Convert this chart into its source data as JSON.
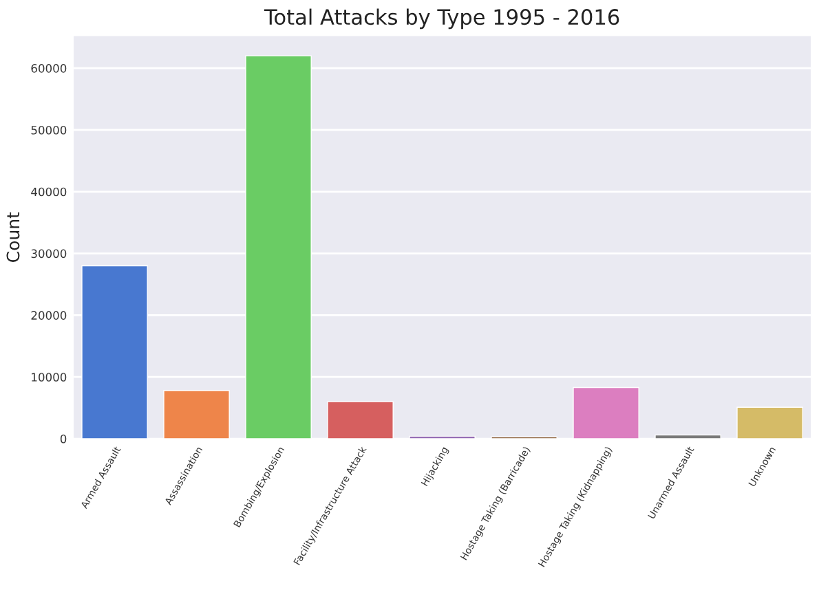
{
  "chart_data": {
    "type": "bar",
    "title": "Total Attacks by Type 1995 - 2016",
    "ylabel": "Count",
    "categories": [
      "Armed Assault",
      "Assassination",
      "Bombing/Explosion",
      "Facility/Infrastructure Attack",
      "Hijacking",
      "Hostage Taking (Barricade)",
      "Hostage Taking (Kidnapping)",
      "Unarmed Assault",
      "Unknown"
    ],
    "values": [
      28000,
      7800,
      62000,
      6000,
      400,
      300,
      8300,
      600,
      5100
    ],
    "colors": [
      "#4878d0",
      "#ee854a",
      "#6acc64",
      "#d65f5f",
      "#956cb4",
      "#8c613c",
      "#dc7ec0",
      "#797979",
      "#d5bb67"
    ],
    "ylim": [
      0,
      65200
    ],
    "yticks": [
      0,
      10000,
      20000,
      30000,
      40000,
      50000,
      60000
    ],
    "grid": "y"
  }
}
